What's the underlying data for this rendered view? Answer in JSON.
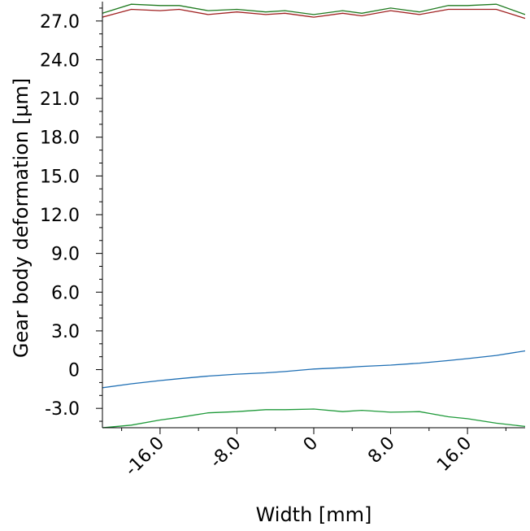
{
  "chart_data": {
    "type": "line",
    "title": "",
    "xlabel": "Width [mm]",
    "ylabel": "Gear body deformation [µm]",
    "xlim": [
      -22,
      22
    ],
    "ylim": [
      -4.5,
      28.5
    ],
    "x_ticks": [
      -16,
      -8,
      0,
      8,
      16
    ],
    "x_tick_labels": [
      "-16.0",
      "-8.0",
      "0",
      "8.0",
      "16.0"
    ],
    "y_ticks": [
      -3,
      0,
      3,
      6,
      9,
      12,
      15,
      18,
      21,
      24,
      27
    ],
    "y_tick_labels": [
      "-3.0",
      "0",
      "3.0",
      "6.0",
      "9.0",
      "12.0",
      "15.0",
      "18.0",
      "21.0",
      "24.0",
      "27.0"
    ],
    "grid": false,
    "legend": "none",
    "series": [
      {
        "color": "#1f7a1f",
        "points": [
          [
            -22,
            27.6
          ],
          [
            -19,
            28.3
          ],
          [
            -16,
            28.2
          ],
          [
            -14,
            28.2
          ],
          [
            -11,
            27.8
          ],
          [
            -8,
            27.9
          ],
          [
            -5,
            27.7
          ],
          [
            -3,
            27.8
          ],
          [
            0,
            27.5
          ],
          [
            3,
            27.8
          ],
          [
            5,
            27.6
          ],
          [
            8,
            28.0
          ],
          [
            11,
            27.7
          ],
          [
            14,
            28.2
          ],
          [
            16,
            28.2
          ],
          [
            19,
            28.3
          ],
          [
            22,
            27.5
          ]
        ]
      },
      {
        "color": "#a02020",
        "points": [
          [
            -22,
            27.3
          ],
          [
            -19,
            27.9
          ],
          [
            -16,
            27.8
          ],
          [
            -14,
            27.9
          ],
          [
            -11,
            27.5
          ],
          [
            -8,
            27.7
          ],
          [
            -5,
            27.5
          ],
          [
            -3,
            27.6
          ],
          [
            0,
            27.3
          ],
          [
            3,
            27.6
          ],
          [
            5,
            27.4
          ],
          [
            8,
            27.8
          ],
          [
            11,
            27.5
          ],
          [
            14,
            27.9
          ],
          [
            16,
            27.9
          ],
          [
            19,
            27.9
          ],
          [
            22,
            27.2
          ]
        ]
      },
      {
        "color": "#1f6fb4",
        "points": [
          [
            -22,
            -1.4
          ],
          [
            -19,
            -1.1
          ],
          [
            -16,
            -0.85
          ],
          [
            -14,
            -0.7
          ],
          [
            -11,
            -0.5
          ],
          [
            -8,
            -0.35
          ],
          [
            -5,
            -0.25
          ],
          [
            -3,
            -0.15
          ],
          [
            0,
            0.05
          ],
          [
            3,
            0.15
          ],
          [
            5,
            0.25
          ],
          [
            8,
            0.35
          ],
          [
            11,
            0.5
          ],
          [
            14,
            0.7
          ],
          [
            16,
            0.85
          ],
          [
            19,
            1.1
          ],
          [
            22,
            1.45
          ]
        ]
      },
      {
        "color": "#1f9a3a",
        "points": [
          [
            -22,
            -4.5
          ],
          [
            -19,
            -4.3
          ],
          [
            -16,
            -3.9
          ],
          [
            -14,
            -3.7
          ],
          [
            -11,
            -3.35
          ],
          [
            -8,
            -3.25
          ],
          [
            -5,
            -3.1
          ],
          [
            -3,
            -3.1
          ],
          [
            0,
            -3.05
          ],
          [
            3,
            -3.25
          ],
          [
            5,
            -3.15
          ],
          [
            8,
            -3.3
          ],
          [
            11,
            -3.25
          ],
          [
            14,
            -3.65
          ],
          [
            16,
            -3.8
          ],
          [
            19,
            -4.15
          ],
          [
            22,
            -4.4
          ]
        ]
      }
    ]
  }
}
